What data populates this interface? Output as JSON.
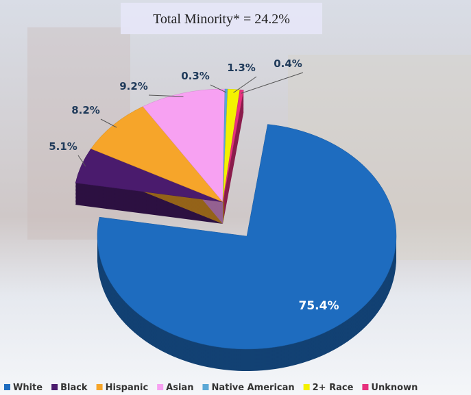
{
  "chart_data": {
    "type": "pie",
    "title": "Total Minority* = 24.2%",
    "categories": [
      "White",
      "Black",
      "Hispanic",
      "Asian",
      "Native American",
      "2+ Race",
      "Unknown"
    ],
    "values": [
      75.4,
      5.1,
      8.2,
      9.2,
      0.3,
      1.3,
      0.4
    ],
    "value_labels": [
      "75.4%",
      "5.1%",
      "8.2%",
      "9.2%",
      "0.3%",
      "1.3%",
      "0.4%"
    ],
    "colors": [
      "#1e6cbf",
      "#4a1b6d",
      "#f6a52a",
      "#f7a1f2",
      "#5ba8d6",
      "#f4f100",
      "#e6317e"
    ]
  }
}
